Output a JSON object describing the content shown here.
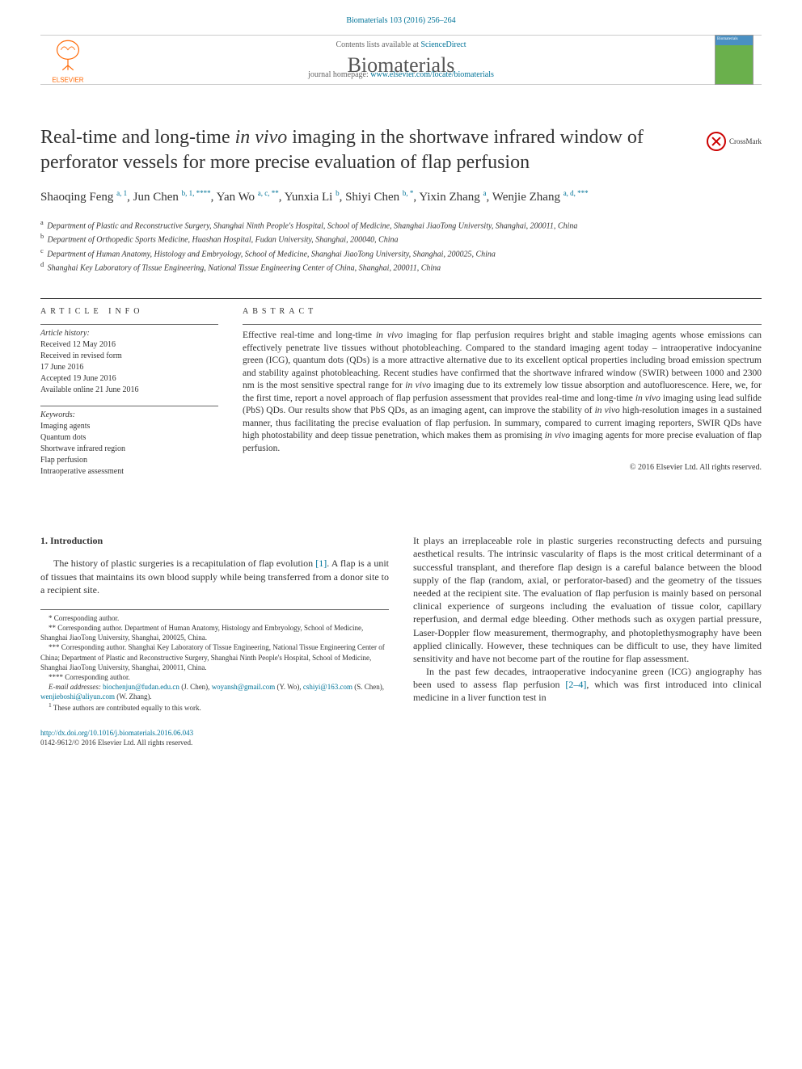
{
  "citation": "Biomaterials 103 (2016) 256–264",
  "header": {
    "contents_prefix": "Contents lists available at ",
    "contents_link": "ScienceDirect",
    "journal": "Biomaterials",
    "homepage_prefix": "journal homepage: ",
    "homepage_link": "www.elsevier.com/locate/biomaterials",
    "elsevier": "ELSEVIER"
  },
  "crossmark": "CrossMark",
  "title_a": "Real-time and long-time ",
  "title_em": "in vivo",
  "title_b": " imaging in the shortwave infrared window of perforator vessels for more precise evaluation of flap perfusion",
  "authors_html": "Shaoqing Feng <sup>a, 1</sup>, Jun Chen <sup>b, 1, ****</sup>, Yan Wo <sup>a, c, **</sup>, Yunxia Li <sup>b</sup>, Shiyi Chen <sup>b, *</sup>, Yixin Zhang <sup>a</sup>, Wenjie Zhang <sup>a, d, ***</sup>",
  "affiliations": [
    {
      "sup": "a",
      "text": "Department of Plastic and Reconstructive Surgery, Shanghai Ninth People's Hospital, School of Medicine, Shanghai JiaoTong University, Shanghai, 200011, China"
    },
    {
      "sup": "b",
      "text": "Department of Orthopedic Sports Medicine, Huashan Hospital, Fudan University, Shanghai, 200040, China"
    },
    {
      "sup": "c",
      "text": "Department of Human Anatomy, Histology and Embryology, School of Medicine, Shanghai JiaoTong University, Shanghai, 200025, China"
    },
    {
      "sup": "d",
      "text": "Shanghai Key Laboratory of Tissue Engineering, National Tissue Engineering Center of China, Shanghai, 200011, China"
    }
  ],
  "info_header": "ARTICLE INFO",
  "history": {
    "label": "Article history:",
    "lines": [
      "Received 12 May 2016",
      "Received in revised form",
      "17 June 2016",
      "Accepted 19 June 2016",
      "Available online 21 June 2016"
    ]
  },
  "keywords": {
    "label": "Keywords:",
    "items": [
      "Imaging agents",
      "Quantum dots",
      "Shortwave infrared region",
      "Flap perfusion",
      "Intraoperative assessment"
    ]
  },
  "abstract_header": "ABSTRACT",
  "abstract": "Effective real-time and long-time <em>in vivo</em> imaging for flap perfusion requires bright and stable imaging agents whose emissions can effectively penetrate live tissues without photobleaching. Compared to the standard imaging agent today – intraoperative indocyanine green (ICG), quantum dots (QDs) is a more attractive alternative due to its excellent optical properties including broad emission spectrum and stability against photobleaching. Recent studies have confirmed that the shortwave infrared window (SWIR) between 1000 and 2300 nm is the most sensitive spectral range for <em>in vivo</em> imaging due to its extremely low tissue absorption and autofluorescence. Here, we, for the first time, report a novel approach of flap perfusion assessment that provides real-time and long-time <em>in vivo</em> imaging using lead sulfide (PbS) QDs. Our results show that PbS QDs, as an imaging agent, can improve the stability of <em>in vivo</em> high-resolution images in a sustained manner, thus facilitating the precise evaluation of flap perfusion. In summary, compared to current imaging reporters, SWIR QDs have high photostability and deep tissue penetration, which makes them as promising <em>in vivo</em> imaging agents for more precise evaluation of flap perfusion.",
  "copyright": "© 2016 Elsevier Ltd. All rights reserved.",
  "body": {
    "heading": "1. Introduction",
    "col1_p1": "The history of plastic surgeries is a recapitulation of flap evolution <span class=\"ref\">[1]</span>. A flap is a unit of tissues that maintains its own blood supply while being transferred from a donor site to a recipient site.",
    "col2_p1": "It plays an irreplaceable role in plastic surgeries reconstructing defects and pursuing aesthetical results. The intrinsic vascularity of flaps is the most critical determinant of a successful transplant, and therefore flap design is a careful balance between the blood supply of the flap (random, axial, or perforator-based) and the geometry of the tissues needed at the recipient site. The evaluation of flap perfusion is mainly based on personal clinical experience of surgeons including the evaluation of tissue color, capillary reperfusion, and dermal edge bleeding. Other methods such as oxygen partial pressure, Laser-Doppler flow measurement, thermography, and photoplethysmography have been applied clinically. However, these techniques can be difficult to use, they have limited sensitivity and have not become part of the routine for flap assessment.",
    "col2_p2": "In the past few decades, intraoperative indocyanine green (ICG) angiography has been used to assess flap perfusion <span class=\"ref\">[2–4]</span>, which was first introduced into clinical medicine in a liver function test in"
  },
  "footnotes": {
    "star1": "* Corresponding author.",
    "star2": "** Corresponding author. Department of Human Anatomy, Histology and Embryology, School of Medicine, Shanghai JiaoTong University, Shanghai, 200025, China.",
    "star3": "*** Corresponding author. Shanghai Key Laboratory of Tissue Engineering, National Tissue Engineering Center of China; Department of Plastic and Reconstructive Surgery, Shanghai Ninth People's Hospital, School of Medicine, Shanghai JiaoTong University, Shanghai, 200011, China.",
    "star4": "**** Corresponding author.",
    "emails_label": "E-mail addresses:",
    "emails": " <a>biochenjun@fudan.edu.cn</a> (J. Chen), <a>woyansh@gmail.com</a> (Y. Wo), <a>cshiyi@163.com</a> (S. Chen), <a>wenjieboshi@aliyun.com</a> (W. Zhang).",
    "contrib": "These authors are contributed equally to this work."
  },
  "footer": {
    "doi": "http://dx.doi.org/10.1016/j.biomaterials.2016.06.043",
    "issn": "0142-9612/© 2016 Elsevier Ltd. All rights reserved."
  },
  "colors": {
    "link": "#007398",
    "elsevier_orange": "#ff6600",
    "text": "#333333",
    "rule": "#666666",
    "crossmark_red": "#cc0000"
  },
  "typography": {
    "title_size": 24,
    "journal_size": 26,
    "body_size": 12,
    "abstract_size": 11.5,
    "footnote_size": 9
  }
}
